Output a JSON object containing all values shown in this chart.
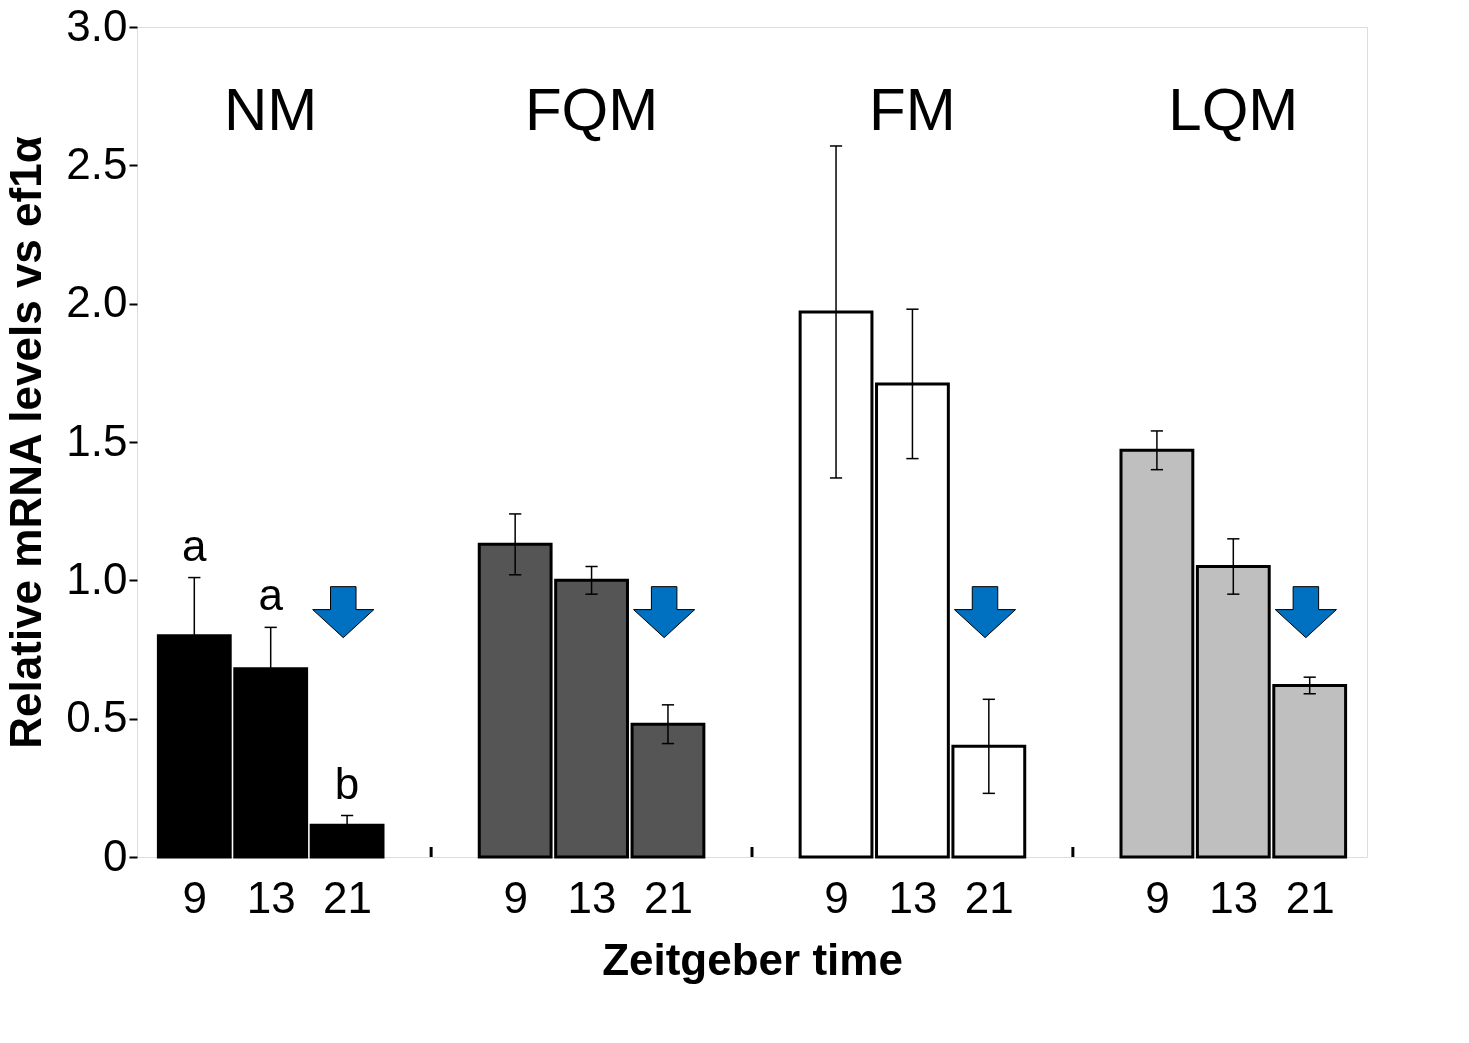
{
  "chart_data": {
    "type": "bar",
    "xlabel": "Zeitgeber time",
    "ylabel": "Relative mRNA levels vs ef1α",
    "categories": [
      "9",
      "13",
      "21",
      "9",
      "13",
      "21",
      "9",
      "13",
      "21",
      "9",
      "13",
      "21"
    ],
    "series": [
      {
        "color": "#000000",
        "values": [
          0.8,
          0.68,
          0.115,
          null,
          null,
          null,
          null,
          null,
          null,
          null,
          null,
          null
        ],
        "errors": [
          0.21,
          0.15,
          0.035,
          null,
          null,
          null,
          null,
          null,
          null,
          null,
          null,
          null
        ]
      },
      {
        "color": "#555555",
        "values": [
          null,
          null,
          null,
          1.13,
          1.0,
          0.48,
          null,
          null,
          null,
          null,
          null,
          null
        ],
        "errors": [
          null,
          null,
          null,
          0.11,
          0.05,
          0.07,
          null,
          null,
          null,
          null,
          null,
          null
        ]
      },
      {
        "color": "#ffffff",
        "values": [
          null,
          null,
          null,
          null,
          null,
          null,
          1.97,
          1.71,
          0.4,
          null,
          null,
          null
        ],
        "errors": [
          null,
          null,
          null,
          null,
          null,
          null,
          0.6,
          0.27,
          0.17,
          null,
          null,
          null
        ]
      },
      {
        "color": "#bfbfbf",
        "values": [
          null,
          null,
          null,
          null,
          null,
          null,
          null,
          null,
          null,
          1.47,
          1.05,
          0.62
        ],
        "errors": [
          null,
          null,
          null,
          null,
          null,
          null,
          null,
          null,
          null,
          0.07,
          0.1,
          0.03
        ]
      }
    ],
    "annotations": [
      "NM",
      "FQM",
      "FM",
      "LQM",
      "a",
      "a",
      "b"
    ],
    "ylim": [
      0,
      3.0
    ],
    "yticks": [
      0,
      {
        "value": 0.5,
        "label": "0.5"
      },
      {
        "value": 1.0,
        "label": "1.0"
      },
      {
        "value": 1.5,
        "label": "1.5"
      },
      {
        "value": 2.0,
        "label": "2.0"
      },
      {
        "value": 2.5,
        "label": "2.5"
      },
      {
        "value": 3.0,
        "label": "3.0"
      }
    ],
    "grid": false,
    "legend": false
  }
}
